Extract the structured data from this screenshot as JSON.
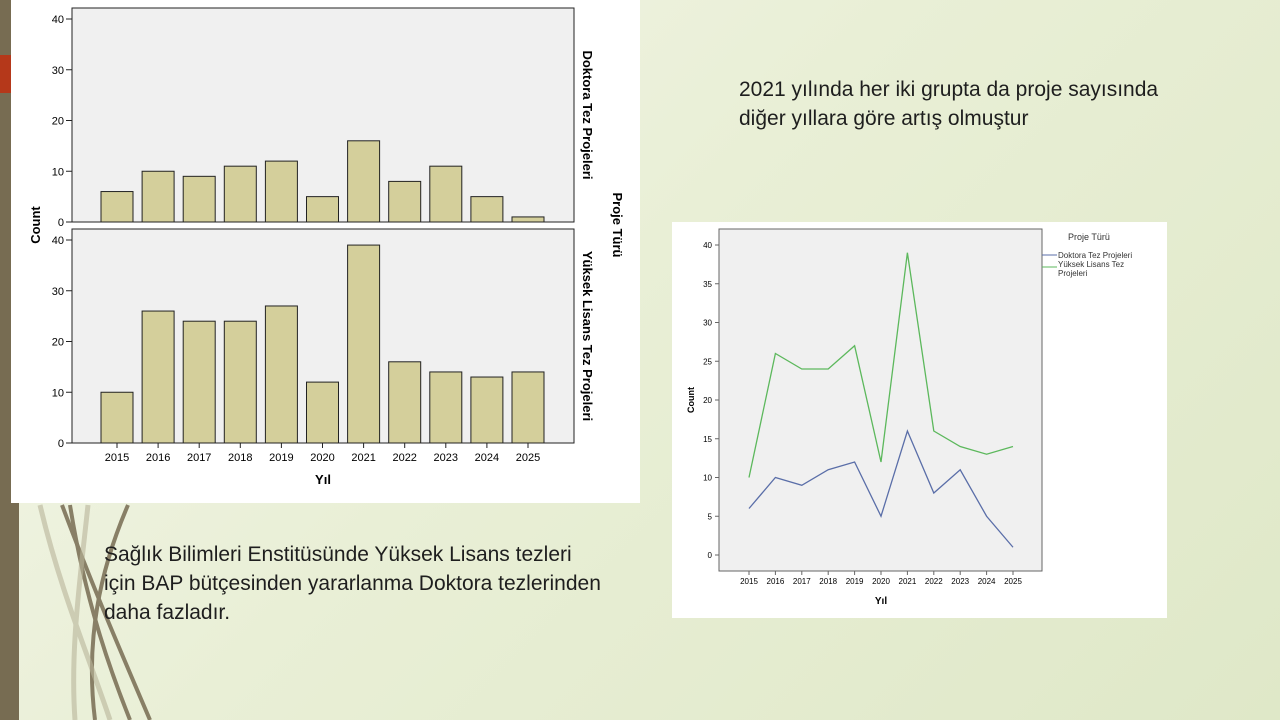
{
  "slide": {
    "note_right": "2021 yılında her iki grupta da proje sayısında diğer yıllara göre artış olmuştur",
    "note_left": "Sağlık Bilimleri Enstitüsünde Yüksek Lisans tezleri için BAP bütçesinden yararlanma Doktora tezlerinden daha fazladır.",
    "colors": {
      "sidebar": "#776c52",
      "accent": "#b5381a",
      "bar_fill": "#d4cf9b"
    }
  },
  "chart_data": [
    {
      "type": "bar",
      "xlabel": "Yıl",
      "ylabel": "Count",
      "panel_title": "Proje Türü",
      "categories": [
        "2015",
        "2016",
        "2017",
        "2018",
        "2019",
        "2020",
        "2021",
        "2022",
        "2023",
        "2024",
        "2025"
      ],
      "ylim": [
        0,
        40
      ],
      "yticks": [
        "0",
        "10",
        "20",
        "30",
        "40"
      ],
      "series": [
        {
          "name": "Doktora Tez Projeleri",
          "values": [
            6,
            10,
            9,
            11,
            12,
            5,
            16,
            8,
            11,
            5,
            1
          ]
        },
        {
          "name": "Yüksek Lisans Tez Projeleri",
          "values": [
            10,
            26,
            24,
            24,
            27,
            12,
            39,
            16,
            14,
            13,
            14
          ]
        }
      ]
    },
    {
      "type": "line",
      "xlabel": "Yıl",
      "ylabel": "Count",
      "legend_title": "Proje Türü",
      "legend_position": "right",
      "categories": [
        "2015",
        "2016",
        "2017",
        "2018",
        "2019",
        "2020",
        "2021",
        "2022",
        "2023",
        "2024",
        "2025"
      ],
      "ylim": [
        0,
        40
      ],
      "yticks": [
        "0",
        "5",
        "10",
        "15",
        "20",
        "25",
        "30",
        "35",
        "40"
      ],
      "series": [
        {
          "name": "Doktora Tez Projeleri",
          "color": "#5a6ea8",
          "values": [
            6,
            10,
            9,
            11,
            12,
            5,
            16,
            8,
            11,
            5,
            1
          ]
        },
        {
          "name": "Yüksek Lisans Tez Projeleri",
          "color": "#5cb85c",
          "values": [
            10,
            26,
            24,
            24,
            27,
            12,
            39,
            16,
            14,
            13,
            14
          ]
        }
      ]
    }
  ]
}
